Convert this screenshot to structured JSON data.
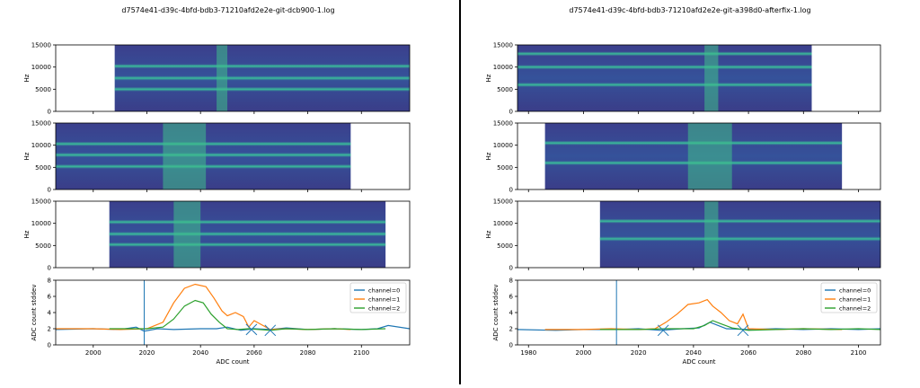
{
  "divider_color": "#000000",
  "colors": {
    "channel0": "#1f77b4",
    "channel1": "#ff7f0e",
    "channel2": "#2ca02c"
  },
  "chart_data": [
    {
      "title": "d7574e41-d39c-4bfd-bdb3-71210afd2e2e-git-dcb900-1.log",
      "spectrograms": [
        {
          "type": "heatmap",
          "ylabel": "Hz",
          "ylim": [
            0,
            15000
          ],
          "yticks": [
            0,
            5000,
            10000,
            15000
          ],
          "data_extent_adc": [
            2008,
            2118
          ],
          "bands_hz": [
            5000,
            7500,
            10200
          ],
          "bright_region_adc": [
            2046,
            2050
          ]
        },
        {
          "type": "heatmap",
          "ylabel": "Hz",
          "ylim": [
            0,
            15000
          ],
          "yticks": [
            0,
            5000,
            10000,
            15000
          ],
          "data_extent_adc": [
            1986,
            2096
          ],
          "bands_hz": [
            5200,
            7800,
            10300
          ],
          "bright_region_adc": [
            2026,
            2042
          ]
        },
        {
          "type": "heatmap",
          "ylabel": "Hz",
          "ylim": [
            0,
            15000
          ],
          "yticks": [
            0,
            5000,
            10000,
            15000
          ],
          "data_extent_adc": [
            2006,
            2109
          ],
          "bands_hz": [
            5200,
            7600,
            10300
          ],
          "bright_region_adc": [
            2030,
            2040
          ]
        }
      ],
      "stddev": {
        "type": "line",
        "xlabel": "ADC count",
        "ylabel": "ADC count stddev",
        "xlim": [
          1986,
          2118
        ],
        "ylim": [
          0,
          8
        ],
        "xticks": [
          2000,
          2020,
          2040,
          2060,
          2080,
          2100
        ],
        "yticks": [
          0,
          2,
          4,
          6,
          8
        ],
        "vline": 2019,
        "legend": [
          "channel=0",
          "channel=1",
          "channel=2"
        ],
        "series": [
          {
            "name": "channel=0",
            "x": [
              1986,
              2000,
              2010,
              2016,
              2019,
              2024,
              2030,
              2040,
              2046,
              2050,
              2055,
              2060,
              2066,
              2072,
              2080,
              2090,
              2100,
              2106,
              2110,
              2118
            ],
            "y": [
              1.9,
              2.0,
              1.9,
              2.2,
              1.7,
              2.0,
              1.9,
              2.0,
              2.0,
              2.2,
              1.8,
              2.0,
              1.9,
              2.1,
              1.9,
              2.0,
              1.9,
              2.0,
              2.4,
              2.0
            ]
          },
          {
            "name": "channel=1",
            "x": [
              1986,
              2000,
              2010,
              2020,
              2026,
              2030,
              2034,
              2038,
              2042,
              2045,
              2048,
              2050,
              2053,
              2056,
              2058,
              2060,
              2066,
              2072,
              2080,
              2090,
              2096
            ],
            "y": [
              2.0,
              2.0,
              1.9,
              2.0,
              2.8,
              5.2,
              7.0,
              7.5,
              7.2,
              5.8,
              4.2,
              3.6,
              4.0,
              3.5,
              2.2,
              3.0,
              1.9,
              2.0,
              1.9,
              2.0,
              1.9
            ]
          },
          {
            "name": "channel=2",
            "x": [
              2006,
              2020,
              2026,
              2030,
              2034,
              2038,
              2041,
              2044,
              2047,
              2050,
              2054,
              2058,
              2066,
              2072,
              2080,
              2090,
              2100,
              2109
            ],
            "y": [
              2.0,
              2.0,
              2.2,
              3.2,
              4.8,
              5.5,
              5.2,
              3.8,
              2.8,
              2.0,
              1.9,
              2.0,
              1.8,
              2.0,
              1.9,
              2.0,
              1.9,
              2.0
            ]
          }
        ],
        "markers": [
          {
            "x": 2059,
            "y": 1.9
          },
          {
            "x": 2066,
            "y": 1.8
          }
        ]
      }
    },
    {
      "title": "d7574e41-d39c-4bfd-bdb3-71210afd2e2e-git-a398d0-afterfix-1.log",
      "spectrograms": [
        {
          "type": "heatmap",
          "ylabel": "Hz",
          "ylim": [
            0,
            15000
          ],
          "yticks": [
            0,
            5000,
            10000,
            15000
          ],
          "data_extent_adc": [
            1976,
            2083
          ],
          "bands_hz": [
            6000,
            10000,
            13000
          ],
          "bright_region_adc": [
            2044,
            2049
          ]
        },
        {
          "type": "heatmap",
          "ylabel": "Hz",
          "ylim": [
            0,
            15000
          ],
          "yticks": [
            0,
            5000,
            10000,
            15000
          ],
          "data_extent_adc": [
            1986,
            2094
          ],
          "bands_hz": [
            6000,
            10500
          ],
          "bright_region_adc": [
            2038,
            2054
          ]
        },
        {
          "type": "heatmap",
          "ylabel": "Hz",
          "ylim": [
            0,
            15000
          ],
          "yticks": [
            0,
            5000,
            10000,
            15000
          ],
          "data_extent_adc": [
            2006,
            2108
          ],
          "bands_hz": [
            6500,
            10500
          ],
          "bright_region_adc": [
            2044,
            2049
          ]
        }
      ],
      "stddev": {
        "type": "line",
        "xlabel": "ADC count",
        "ylabel": "ADC count stddev",
        "xlim": [
          1976,
          2108
        ],
        "ylim": [
          0,
          8
        ],
        "xticks": [
          1980,
          2000,
          2020,
          2040,
          2060,
          2080,
          2100
        ],
        "yticks": [
          0,
          2,
          4,
          6,
          8
        ],
        "vline": 2012,
        "legend": [
          "channel=0",
          "channel=1",
          "channel=2"
        ],
        "series": [
          {
            "name": "channel=0",
            "x": [
              1976,
              1990,
              2000,
              2012,
              2020,
              2028,
              2036,
              2042,
              2046,
              2049,
              2052,
              2060,
              2070,
              2080,
              2090,
              2100,
              2108
            ],
            "y": [
              1.9,
              1.8,
              1.9,
              1.9,
              2.0,
              1.8,
              2.0,
              2.1,
              2.8,
              2.4,
              2.0,
              1.9,
              2.0,
              1.9,
              2.0,
              1.9,
              2.0
            ]
          },
          {
            "name": "channel=1",
            "x": [
              1986,
              2000,
              2010,
              2020,
              2026,
              2030,
              2034,
              2038,
              2042,
              2045,
              2047,
              2050,
              2053,
              2056,
              2058,
              2060,
              2070,
              2080,
              2094
            ],
            "y": [
              1.9,
              1.9,
              2.0,
              1.9,
              2.0,
              2.8,
              3.8,
              5.0,
              5.2,
              5.6,
              4.8,
              4.0,
              3.0,
              2.6,
              3.8,
              2.0,
              1.9,
              2.0,
              1.9
            ]
          },
          {
            "name": "channel=2",
            "x": [
              2006,
              2020,
              2030,
              2040,
              2044,
              2047,
              2050,
              2054,
              2060,
              2070,
              2080,
              2090,
              2100,
              2108
            ],
            "y": [
              1.9,
              1.9,
              2.0,
              2.0,
              2.4,
              3.0,
              2.6,
              2.1,
              1.8,
              1.9,
              2.0,
              1.9,
              2.0,
              1.9
            ]
          }
        ],
        "markers": [
          {
            "x": 2029,
            "y": 1.8
          },
          {
            "x": 2058,
            "y": 1.8
          }
        ]
      }
    }
  ]
}
